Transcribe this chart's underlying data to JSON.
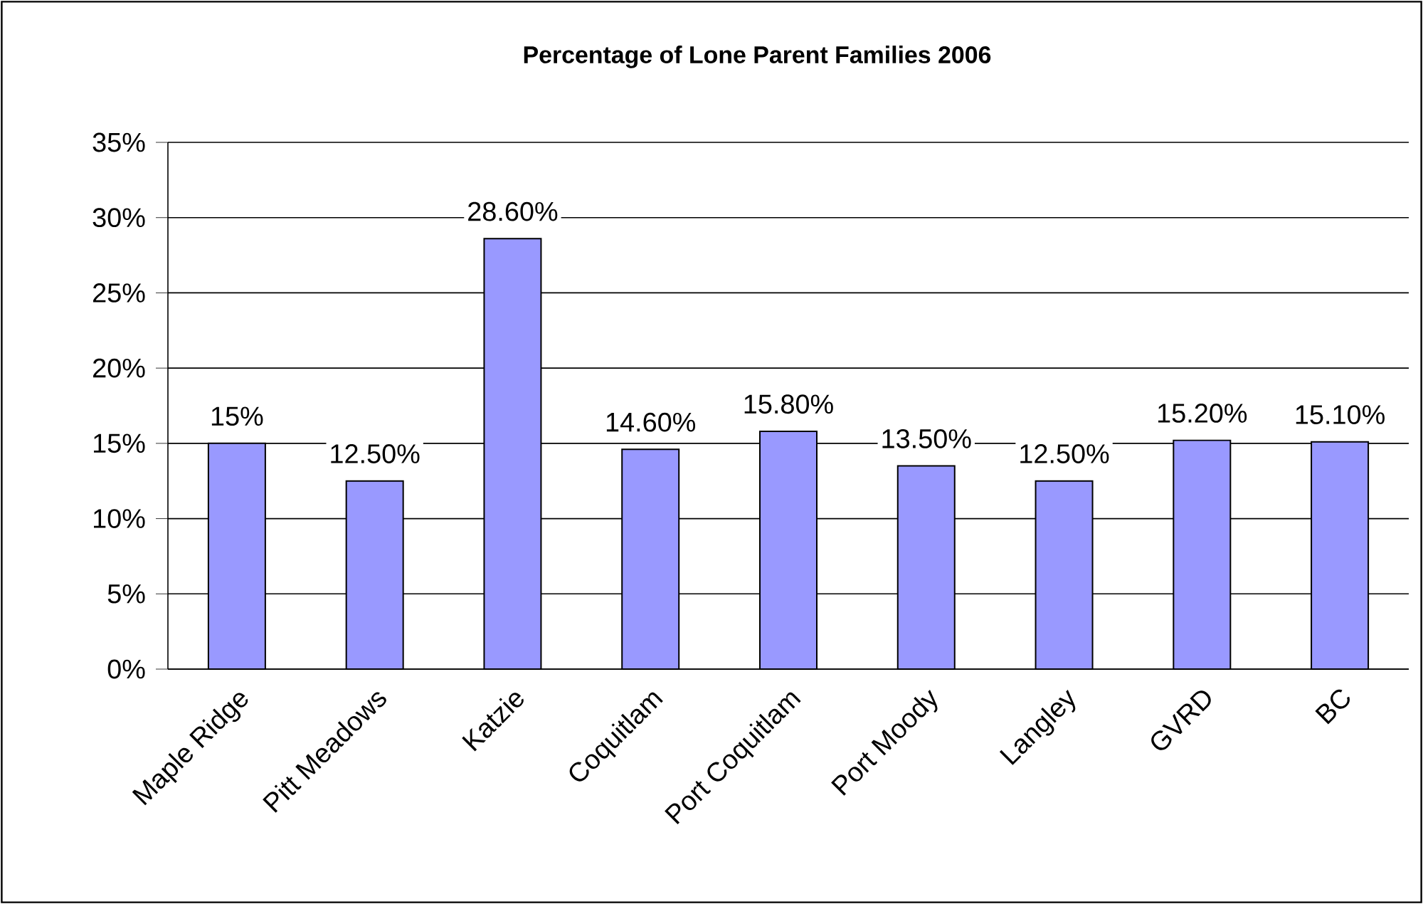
{
  "chart_data": {
    "type": "bar",
    "title": "Percentage of Lone Parent Families 2006",
    "categories": [
      "Maple Ridge",
      "Pitt Meadows",
      "Katzie",
      "Coquitlam",
      "Port Coquitlam",
      "Port Moody",
      "Langley",
      "GVRD",
      "BC"
    ],
    "values": [
      15,
      12.5,
      28.6,
      14.6,
      15.8,
      13.5,
      12.5,
      15.2,
      15.1
    ],
    "value_labels": [
      "15%",
      "12.50%",
      "28.60%",
      "14.60%",
      "15.80%",
      "13.50%",
      "12.50%",
      "15.20%",
      "15.10%"
    ],
    "color": "#9999ff",
    "ylim": [
      0,
      35
    ],
    "yticks": [
      {
        "value": 0,
        "label": "0%"
      },
      {
        "value": 5,
        "label": "5%"
      },
      {
        "value": 10,
        "label": "10%"
      },
      {
        "value": 15,
        "label": "15%"
      },
      {
        "value": 20,
        "label": "20%"
      },
      {
        "value": 25,
        "label": "25%"
      },
      {
        "value": 30,
        "label": "30%"
      },
      {
        "value": 35,
        "label": "35%"
      }
    ],
    "grid": "y"
  }
}
